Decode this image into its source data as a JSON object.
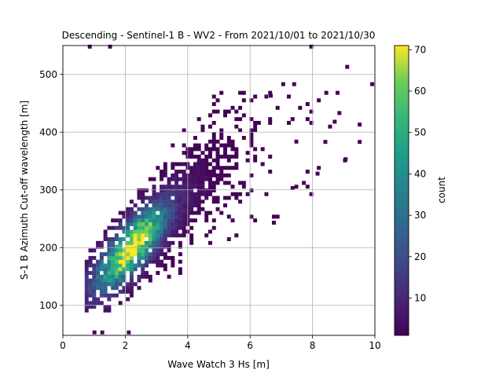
{
  "chart_data": {
    "type": "heatmap",
    "title": "Descending - Sentinel-1 B - WV2 - From 2021/10/01 to 2021/10/30",
    "xlabel": "Wave Watch 3 Hs [m]",
    "ylabel": "S-1 B Azimuth Cut-off wavelength [m]",
    "xlim": [
      0,
      10
    ],
    "ylim": [
      48,
      550
    ],
    "xticks": [
      0,
      2,
      4,
      6,
      8,
      10
    ],
    "yticks": [
      100,
      200,
      300,
      400,
      500
    ],
    "grid": true,
    "colormap": "viridis",
    "colorbar": {
      "label": "count",
      "range": [
        1,
        71
      ],
      "ticks": [
        10,
        20,
        30,
        40,
        50,
        60,
        70
      ]
    },
    "density": {
      "description_free": true,
      "mode_x": 2.15,
      "mode_y": 195,
      "peak_count": 71,
      "x_range": [
        0.7,
        9.8
      ],
      "y_range": [
        50,
        545
      ]
    },
    "bins": [
      {
        "x": 0.8,
        "y": 545,
        "count": 1
      },
      {
        "x": 1.45,
        "y": 545,
        "count": 1
      },
      {
        "x": 7.9,
        "y": 545,
        "count": 1
      },
      {
        "x": 9.05,
        "y": 510,
        "count": 1
      },
      {
        "x": 9.85,
        "y": 480,
        "count": 1
      },
      {
        "x": 7.0,
        "y": 480,
        "count": 1
      },
      {
        "x": 7.35,
        "y": 480,
        "count": 1
      },
      {
        "x": 6.6,
        "y": 460,
        "count": 1
      },
      {
        "x": 8.8,
        "y": 430,
        "count": 1
      },
      {
        "x": 9.45,
        "y": 410,
        "count": 1
      },
      {
        "x": 8.65,
        "y": 415,
        "count": 1
      },
      {
        "x": 9.45,
        "y": 380,
        "count": 1
      },
      {
        "x": 8.35,
        "y": 380,
        "count": 1
      },
      {
        "x": 9.0,
        "y": 350,
        "count": 1
      },
      {
        "x": 8.1,
        "y": 325,
        "count": 1
      },
      {
        "x": 6.7,
        "y": 240,
        "count": 1
      },
      {
        "x": 7.3,
        "y": 300,
        "count": 1
      },
      {
        "x": 0.95,
        "y": 50,
        "count": 1
      },
      {
        "x": 1.2,
        "y": 50,
        "count": 1
      },
      {
        "x": 2.05,
        "y": 50,
        "count": 1
      }
    ]
  }
}
